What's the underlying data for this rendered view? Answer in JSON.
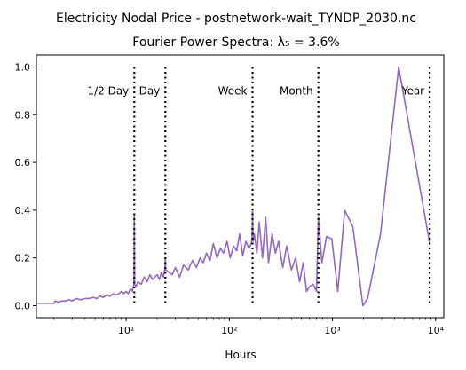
{
  "suptitle": "Electricity Nodal Price - postnetwork-wait_TYNDP_2030.nc",
  "chart_data": {
    "type": "line",
    "title": "Fourier Power Spectra: λ₅ = 3.6%",
    "xlabel": "Hours",
    "ylabel": "",
    "xscale": "log",
    "xlim": [
      1.35,
      12000
    ],
    "ylim": [
      -0.05,
      1.05
    ],
    "grid": false,
    "line_color": "#9467bd",
    "vline_color": "#000000",
    "yticks": [
      0.0,
      0.2,
      0.4,
      0.6,
      0.8,
      1.0
    ],
    "ytick_labels": [
      "0.0",
      "0.2",
      "0.4",
      "0.6",
      "0.8",
      "1.0"
    ],
    "xticks": [
      10,
      100,
      1000,
      10000
    ],
    "xtick_labels": [
      "10¹",
      "10²",
      "10³",
      "10⁴"
    ],
    "annotations": [
      {
        "text": "1/2 Day",
        "x": 12
      },
      {
        "text": "Day",
        "x": 24
      },
      {
        "text": "Week",
        "x": 168
      },
      {
        "text": "Month",
        "x": 730
      },
      {
        "text": "Year",
        "x": 8760
      }
    ],
    "series": [
      {
        "x": [
          1.35,
          2.0,
          2.05,
          2.2,
          2.4,
          2.6,
          2.8,
          3.0,
          3.3,
          3.6,
          4.0,
          4.4,
          4.8,
          5.2,
          5.6,
          6.0,
          6.5,
          7.0,
          7.5,
          8.0,
          8.5,
          9.0,
          9.5,
          10.0,
          10.5,
          11.0,
          11.5,
          11.9,
          12.0,
          12.1,
          12.5,
          13.0,
          14.0,
          15.0,
          16.0,
          17.0,
          18.0,
          19.0,
          20.0,
          21.0,
          22.0,
          23.0,
          23.8,
          24.0,
          24.2,
          26.0,
          28.0,
          30.0,
          33.0,
          36.0,
          40.0,
          44.0,
          48.0,
          52.0,
          56.0,
          60.0,
          65.0,
          70.0,
          76.0,
          82.0,
          88.0,
          95.0,
          102.0,
          110.0,
          118.0,
          126.0,
          135.0,
          145.0,
          155.0,
          163.0,
          166.0,
          168.0,
          170.0,
          175.0,
          185.0,
          195.0,
          210.0,
          225.0,
          240.0,
          260.0,
          280.0,
          300.0,
          330.0,
          360.0,
          400.0,
          440.0,
          480.0,
          520.0,
          560.0,
          600.0,
          650.0,
          700.0,
          730.0,
          790.0,
          876.0,
          985.0,
          1126.0,
          1314.0,
          1577.0,
          1971.0,
          2190.0,
          2920.0,
          4380.0,
          8760.0
        ],
        "y": [
          0.01,
          0.01,
          0.02,
          0.015,
          0.02,
          0.02,
          0.025,
          0.02,
          0.03,
          0.025,
          0.03,
          0.03,
          0.035,
          0.03,
          0.04,
          0.035,
          0.045,
          0.04,
          0.05,
          0.045,
          0.05,
          0.06,
          0.05,
          0.06,
          0.05,
          0.07,
          0.06,
          0.09,
          0.38,
          0.09,
          0.08,
          0.1,
          0.09,
          0.12,
          0.1,
          0.13,
          0.11,
          0.12,
          0.13,
          0.11,
          0.14,
          0.12,
          0.16,
          0.2,
          0.15,
          0.14,
          0.13,
          0.16,
          0.12,
          0.17,
          0.15,
          0.19,
          0.16,
          0.2,
          0.18,
          0.22,
          0.19,
          0.26,
          0.2,
          0.24,
          0.22,
          0.27,
          0.2,
          0.25,
          0.23,
          0.3,
          0.21,
          0.27,
          0.24,
          0.26,
          0.28,
          0.4,
          0.27,
          0.3,
          0.22,
          0.35,
          0.2,
          0.37,
          0.18,
          0.3,
          0.22,
          0.27,
          0.16,
          0.25,
          0.15,
          0.2,
          0.1,
          0.18,
          0.06,
          0.08,
          0.09,
          0.06,
          0.37,
          0.18,
          0.29,
          0.28,
          0.06,
          0.4,
          0.33,
          0.0,
          0.03,
          0.3,
          1.0,
          0.26
        ]
      }
    ]
  }
}
